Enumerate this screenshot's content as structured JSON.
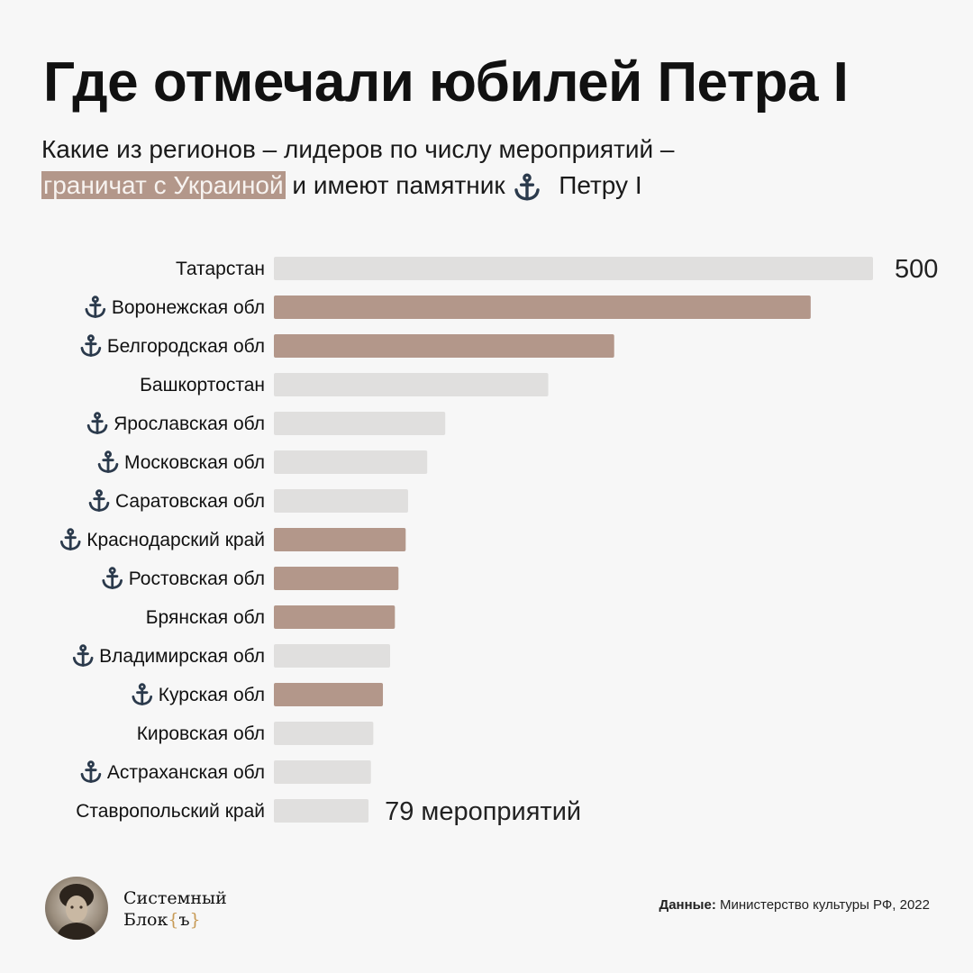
{
  "title": "Где отмечали юбилей Петра I",
  "subtitle": {
    "line1": "Какие из регионов – лидеров по числу мероприятий –",
    "highlight": "граничат с Украиной",
    "mid": " и имеют памятник ",
    "end": "Петру I"
  },
  "colors": {
    "border_ukraine": "#b3978a",
    "other": "#e0dfde",
    "anchor": "#2b3a4c"
  },
  "legend_icon": "anchor-icon",
  "chart_data": {
    "type": "bar",
    "orientation": "horizontal",
    "categories": [
      "Татарстан",
      "Воронежская обл",
      "Белгородская обл",
      "Башкортостан",
      "Ярославская обл",
      "Московская обл",
      "Саратовская обл",
      "Краснодарский край",
      "Ростовская обл",
      "Брянская обл",
      "Владимирская обл",
      "Курская обл",
      "Кировская обл",
      "Астраханская обл",
      "Ставропольский край"
    ],
    "values": [
      500,
      448,
      284,
      229,
      143,
      128,
      112,
      110,
      104,
      101,
      97,
      91,
      83,
      81,
      79
    ],
    "border_ukraine": [
      false,
      true,
      true,
      false,
      false,
      false,
      false,
      true,
      true,
      true,
      false,
      true,
      false,
      false,
      false
    ],
    "peter_monument": [
      false,
      true,
      true,
      false,
      true,
      true,
      true,
      true,
      true,
      false,
      true,
      true,
      false,
      true,
      false
    ],
    "data_labels": {
      "first": "500",
      "last": "79 мероприятий"
    },
    "xlim": [
      0,
      500
    ],
    "grid": false
  },
  "footer": {
    "brand_line1": "Системный",
    "brand_line2": "Блок",
    "brand_suffix_open": "{",
    "brand_suffix_mid": "ъ",
    "brand_suffix_close": "}",
    "source_label": "Данные:",
    "source_text": " Министерство культуры РФ, 2022"
  }
}
